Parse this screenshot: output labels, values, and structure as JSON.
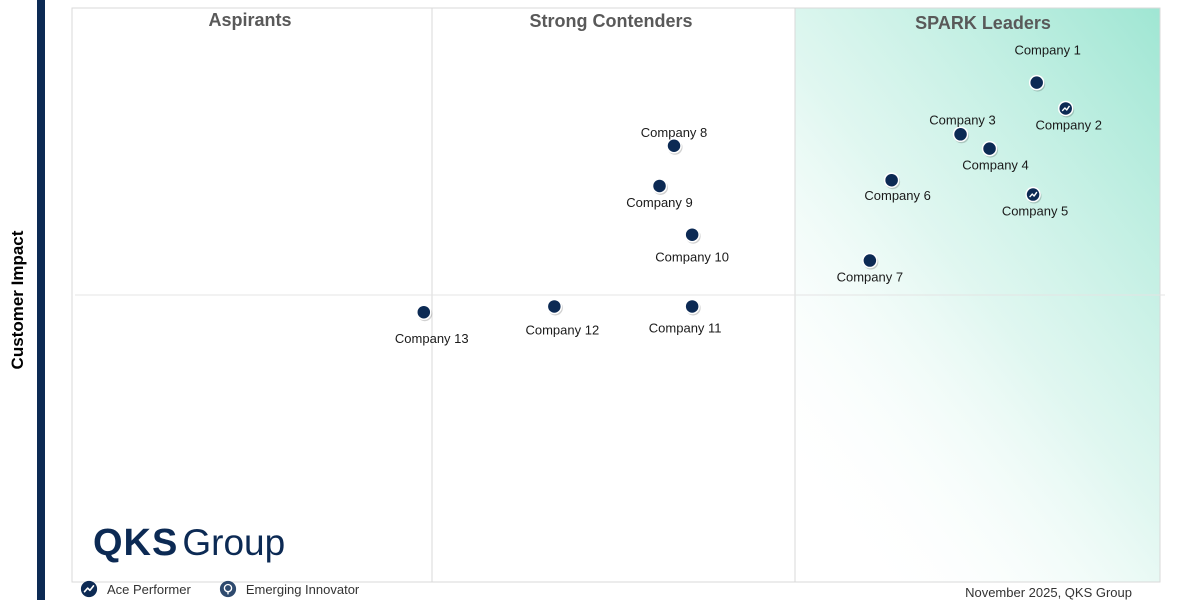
{
  "chart_data": {
    "type": "scatter",
    "title": "",
    "ylabel": "Customer Impact",
    "xlabel": "",
    "xlim": [
      0,
      3
    ],
    "ylim": [
      0,
      2
    ],
    "quadrants": [
      "Aspirants",
      "Strong Contenders",
      "SPARK Leaders"
    ],
    "points": [
      {
        "label": "Company 1",
        "x": 2.66,
        "y": 1.74,
        "marker": "plain"
      },
      {
        "label": "Company 2",
        "x": 2.74,
        "y": 1.65,
        "marker": "ace"
      },
      {
        "label": "Company 3",
        "x": 2.45,
        "y": 1.56,
        "marker": "plain"
      },
      {
        "label": "Company 4",
        "x": 2.53,
        "y": 1.51,
        "marker": "plain"
      },
      {
        "label": "Company 5",
        "x": 2.65,
        "y": 1.35,
        "marker": "ace"
      },
      {
        "label": "Company 6",
        "x": 2.26,
        "y": 1.4,
        "marker": "plain"
      },
      {
        "label": "Company 7",
        "x": 2.2,
        "y": 1.12,
        "marker": "plain"
      },
      {
        "label": "Company 8",
        "x": 1.66,
        "y": 1.52,
        "marker": "plain"
      },
      {
        "label": "Company 9",
        "x": 1.62,
        "y": 1.38,
        "marker": "plain"
      },
      {
        "label": "Company 10",
        "x": 1.71,
        "y": 1.21,
        "marker": "plain"
      },
      {
        "label": "Company 11",
        "x": 1.71,
        "y": 0.96,
        "marker": "plain"
      },
      {
        "label": "Company 12",
        "x": 1.33,
        "y": 0.96,
        "marker": "plain"
      },
      {
        "label": "Company 13",
        "x": 0.97,
        "y": 0.94,
        "marker": "plain"
      }
    ],
    "legend": [
      {
        "label": "Ace Performer",
        "icon": "ace-performer-icon"
      },
      {
        "label": "Emerging Innovator",
        "icon": "emerging-innovator-icon"
      }
    ],
    "colors": {
      "marker": "#0c2a54",
      "leader_gradient": "#9fe6d3",
      "grid": "#d9d9d9"
    }
  },
  "logo": {
    "bold": "QKS",
    "light": "Group"
  },
  "footer": {
    "date": "November 2025, QKS Group"
  }
}
